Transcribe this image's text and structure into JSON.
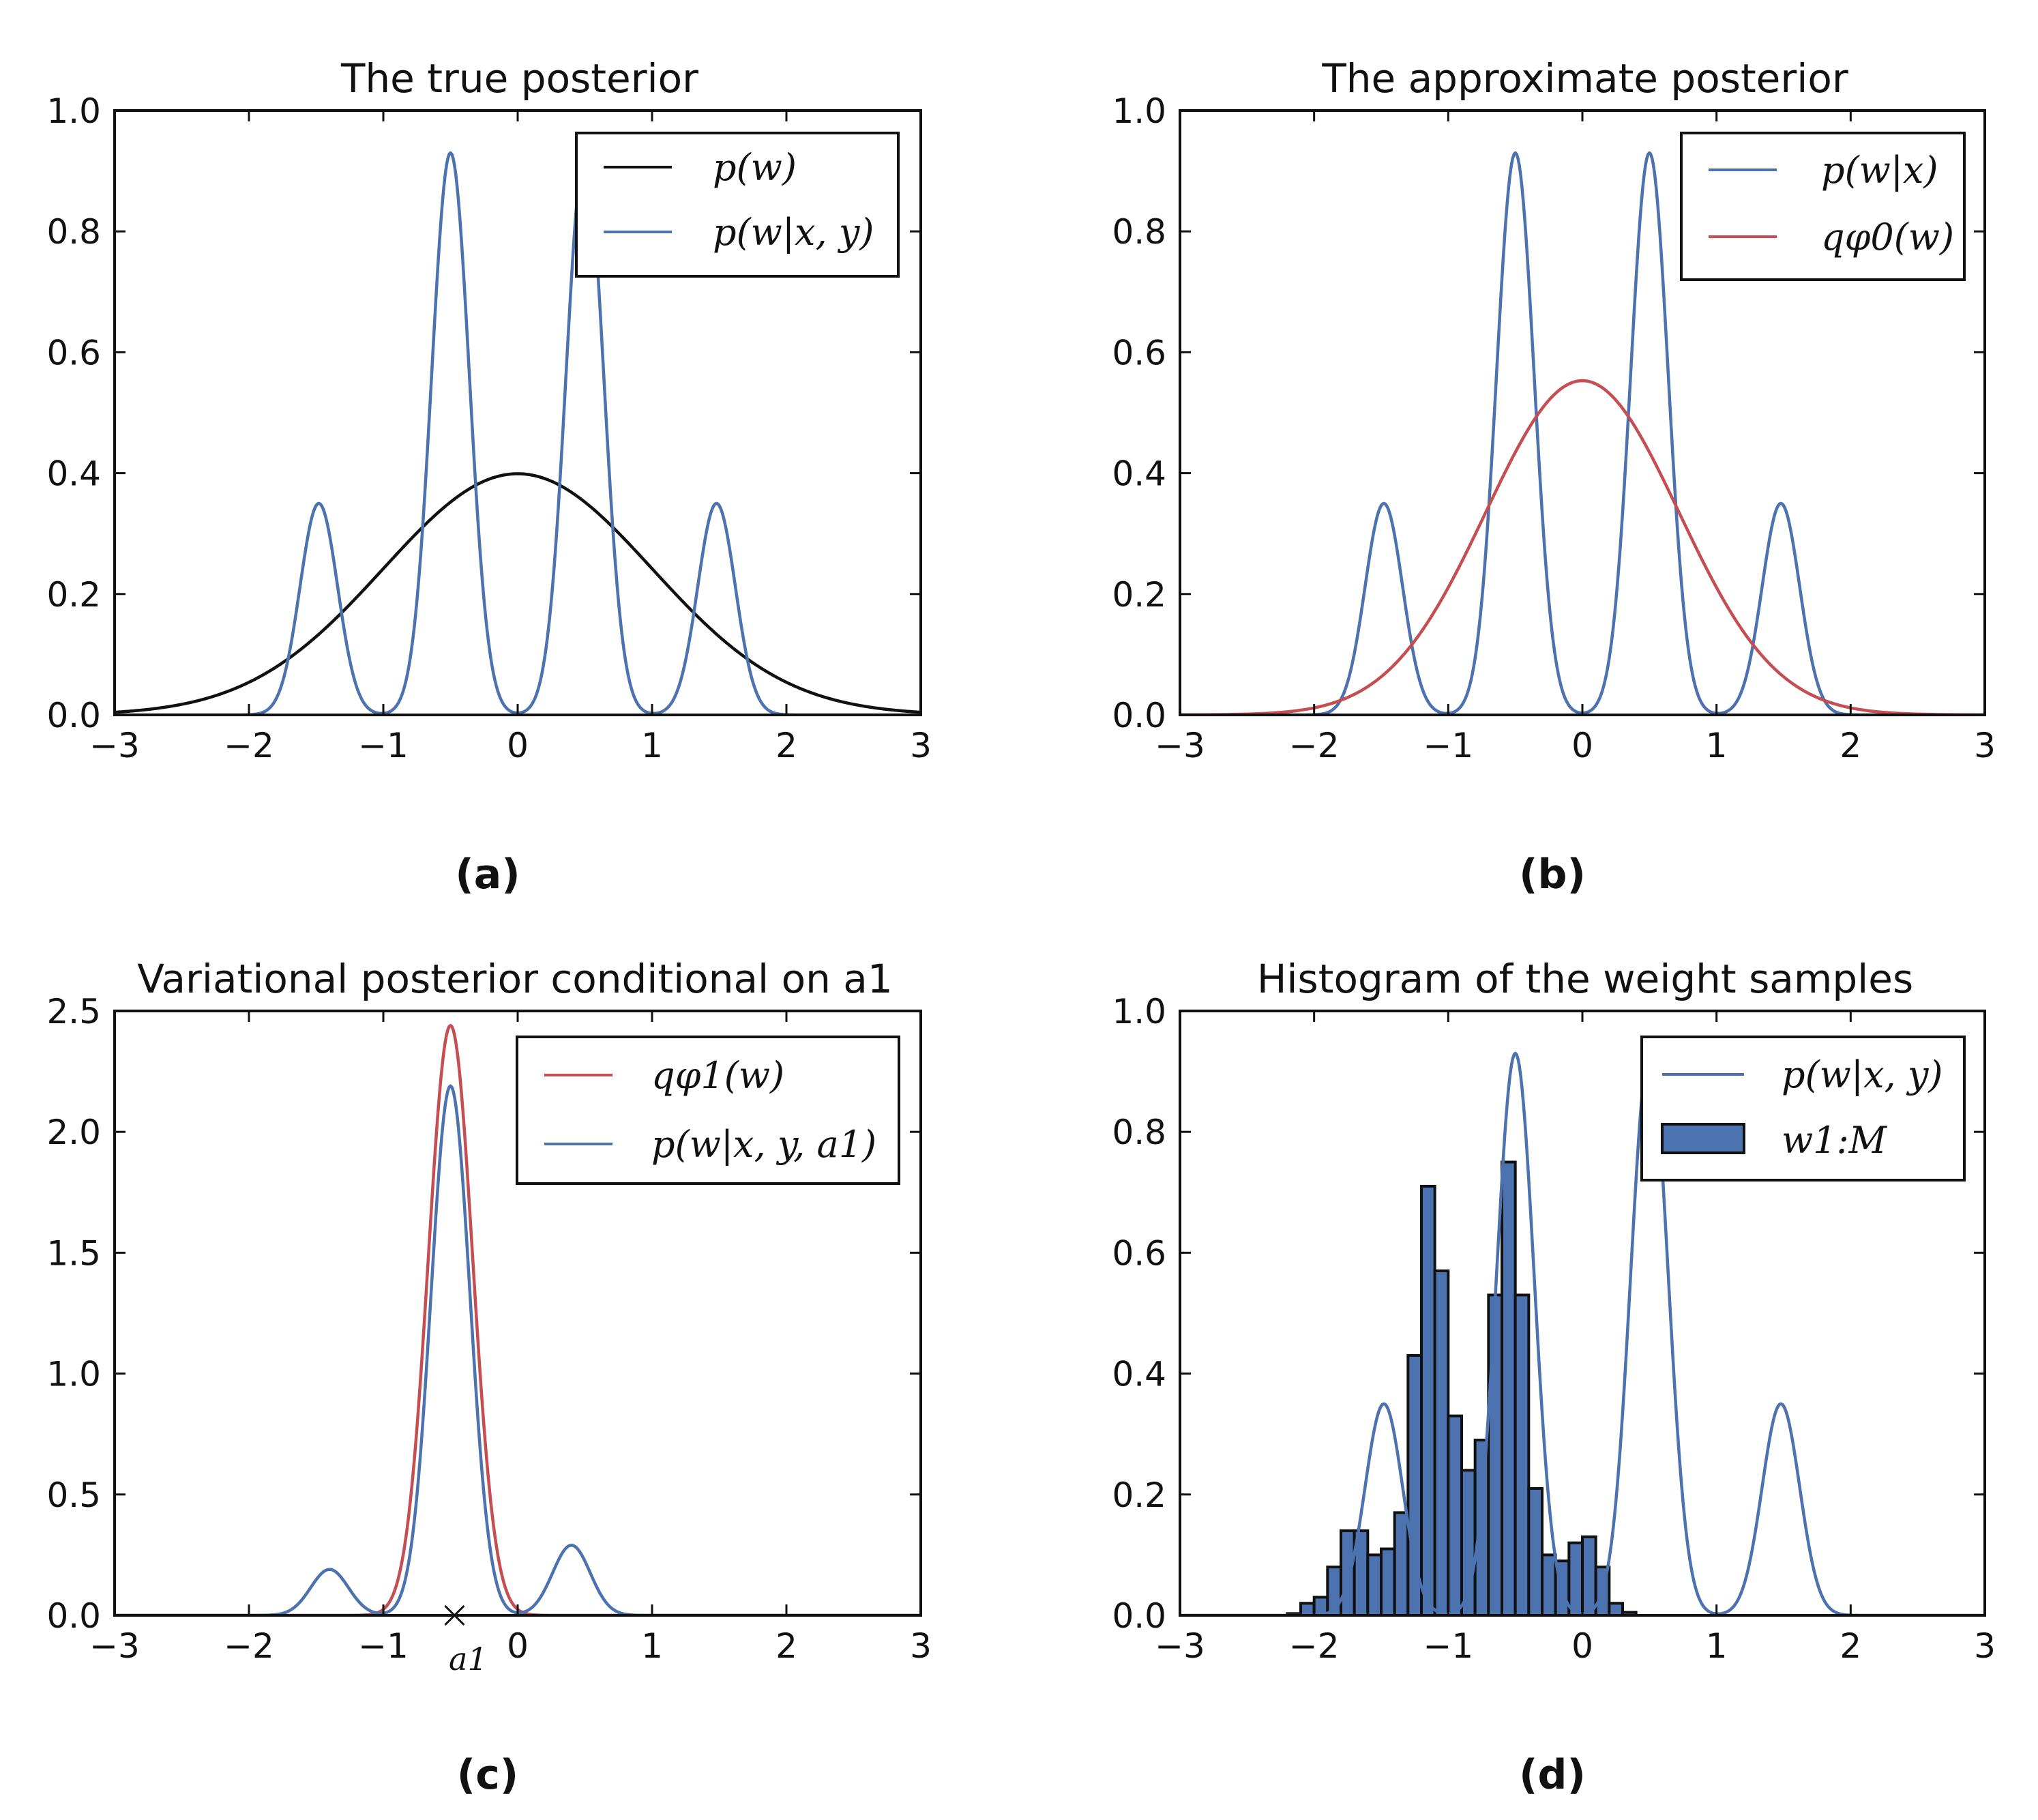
{
  "figure": {
    "panel_labels": [
      "(a)",
      "(b)",
      "(c)",
      "(d)"
    ]
  },
  "colors": {
    "blue": "#4c72b0",
    "red": "#c44e52",
    "black": "#111111",
    "hist_fill": "#4c72b0",
    "hist_edge": "#111111"
  },
  "chart_data": [
    {
      "type": "line",
      "title": "The true posterior",
      "xlim": [
        -3,
        3
      ],
      "ylim": [
        0,
        1.0
      ],
      "xticks": [
        "−3",
        "−2",
        "−1",
        "0",
        "1",
        "2",
        "3"
      ],
      "yticks": [
        "0.0",
        "0.2",
        "0.4",
        "0.6",
        "0.8",
        "1.0"
      ],
      "legend_position": "top-right",
      "series": [
        {
          "name": "p(w)",
          "color": "black",
          "kind": "gaussian",
          "mu": 0,
          "sigma": 1,
          "peak": 0.399
        },
        {
          "name": "p(w|x, y)",
          "color": "blue",
          "kind": "bumps",
          "bumps": [
            {
              "mu": -1.48,
              "sigma": 0.14,
              "peak": 0.35
            },
            {
              "mu": -0.5,
              "sigma": 0.14,
              "peak": 0.93
            },
            {
              "mu": 0.5,
              "sigma": 0.14,
              "peak": 0.93
            },
            {
              "mu": 1.48,
              "sigma": 0.14,
              "peak": 0.35
            }
          ]
        }
      ]
    },
    {
      "type": "line",
      "title": "The approximate posterior",
      "xlim": [
        -3,
        3
      ],
      "ylim": [
        0,
        1.0
      ],
      "xticks": [
        "−3",
        "−2",
        "−1",
        "0",
        "1",
        "2",
        "3"
      ],
      "yticks": [
        "0.0",
        "0.2",
        "0.4",
        "0.6",
        "0.8",
        "1.0"
      ],
      "legend_position": "top-right",
      "series": [
        {
          "name": "p(w|x)",
          "color": "blue",
          "kind": "bumps",
          "bumps": [
            {
              "mu": -1.48,
              "sigma": 0.14,
              "peak": 0.35
            },
            {
              "mu": -0.5,
              "sigma": 0.14,
              "peak": 0.93
            },
            {
              "mu": 0.5,
              "sigma": 0.14,
              "peak": 0.93
            },
            {
              "mu": 1.48,
              "sigma": 0.14,
              "peak": 0.35
            }
          ]
        },
        {
          "name": "qφ0(w)",
          "color": "red",
          "kind": "gaussian",
          "mu": 0,
          "sigma": 0.72,
          "peak": 0.553
        }
      ]
    },
    {
      "type": "line",
      "title": "Variational posterior conditional on a1",
      "xlim": [
        -3,
        3
      ],
      "ylim": [
        0,
        2.5
      ],
      "xticks": [
        "−3",
        "−2",
        "−1",
        "0",
        "1",
        "2",
        "3"
      ],
      "yticks": [
        "0.0",
        "0.5",
        "1.0",
        "1.5",
        "2.0",
        "2.5"
      ],
      "legend_position": "top-right",
      "marker": {
        "label": "a1",
        "x": -0.47,
        "y": 0
      },
      "series": [
        {
          "name": "qφ1(w)",
          "color": "red",
          "kind": "gaussian",
          "mu": -0.5,
          "sigma": 0.165,
          "peak": 2.44
        },
        {
          "name": "p(w|x, y, a1)",
          "color": "blue",
          "kind": "bumps",
          "bumps": [
            {
              "mu": -1.4,
              "sigma": 0.14,
              "peak": 0.19
            },
            {
              "mu": -0.5,
              "sigma": 0.145,
              "peak": 2.19
            },
            {
              "mu": 0.4,
              "sigma": 0.14,
              "peak": 0.29
            }
          ]
        }
      ]
    },
    {
      "type": "bar",
      "title": "Histogram of the weight samples",
      "xlim": [
        -3,
        3
      ],
      "ylim": [
        0,
        1.0
      ],
      "xticks": [
        "−3",
        "−2",
        "−1",
        "0",
        "1",
        "2",
        "3"
      ],
      "yticks": [
        "0.0",
        "0.2",
        "0.4",
        "0.6",
        "0.8",
        "1.0"
      ],
      "legend_position": "top-right",
      "bin_width": 0.1,
      "bins": [
        {
          "x0": -2.2,
          "value": 0.003
        },
        {
          "x0": -2.1,
          "value": 0.02
        },
        {
          "x0": -2.0,
          "value": 0.03
        },
        {
          "x0": -1.9,
          "value": 0.08
        },
        {
          "x0": -1.8,
          "value": 0.14
        },
        {
          "x0": -1.7,
          "value": 0.14
        },
        {
          "x0": -1.6,
          "value": 0.1
        },
        {
          "x0": -1.5,
          "value": 0.11
        },
        {
          "x0": -1.4,
          "value": 0.17
        },
        {
          "x0": -1.3,
          "value": 0.43
        },
        {
          "x0": -1.2,
          "value": 0.71
        },
        {
          "x0": -1.1,
          "value": 0.57
        },
        {
          "x0": -1.0,
          "value": 0.33
        },
        {
          "x0": -0.9,
          "value": 0.24
        },
        {
          "x0": -0.8,
          "value": 0.29
        },
        {
          "x0": -0.7,
          "value": 0.53
        },
        {
          "x0": -0.6,
          "value": 0.75
        },
        {
          "x0": -0.5,
          "value": 0.53
        },
        {
          "x0": -0.4,
          "value": 0.21
        },
        {
          "x0": -0.3,
          "value": 0.1
        },
        {
          "x0": -0.2,
          "value": 0.09
        },
        {
          "x0": -0.1,
          "value": 0.12
        },
        {
          "x0": 0.0,
          "value": 0.13
        },
        {
          "x0": 0.1,
          "value": 0.08
        },
        {
          "x0": 0.2,
          "value": 0.02
        },
        {
          "x0": 0.3,
          "value": 0.005
        }
      ],
      "series": [
        {
          "name": "p(w|x, y)",
          "color": "blue",
          "kind": "bumps",
          "bumps": [
            {
              "mu": -1.48,
              "sigma": 0.14,
              "peak": 0.35
            },
            {
              "mu": -0.5,
              "sigma": 0.14,
              "peak": 0.93
            },
            {
              "mu": 0.5,
              "sigma": 0.14,
              "peak": 0.93
            },
            {
              "mu": 1.48,
              "sigma": 0.14,
              "peak": 0.35
            }
          ]
        },
        {
          "name": "w1:M",
          "color": "hist_fill",
          "kind": "histogram"
        }
      ]
    }
  ]
}
